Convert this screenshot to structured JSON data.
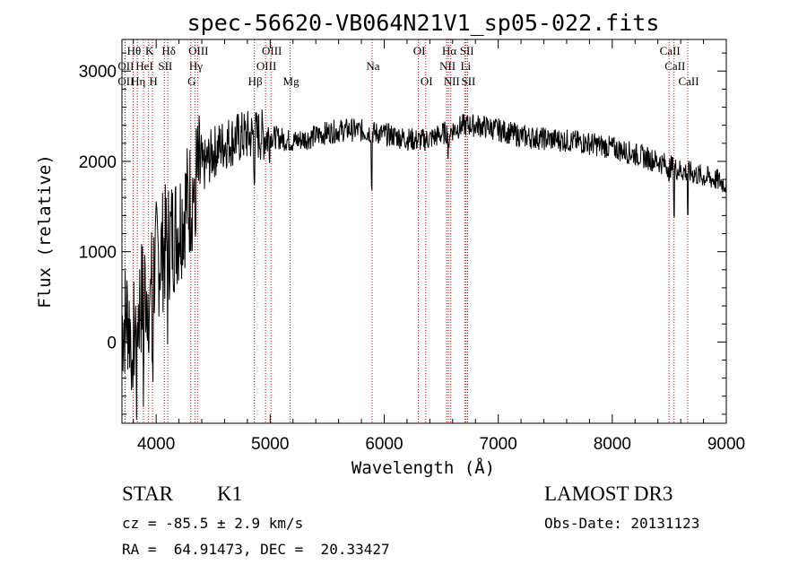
{
  "chart_data": {
    "type": "line",
    "title": "spec-56620-VB064N21V1_sp05-022.fits",
    "xlabel": "Wavelength (Å)",
    "ylabel": "Flux (relative)",
    "xlim": [
      3700,
      9000
    ],
    "ylim": [
      -900,
      3350
    ],
    "xticks": [
      4000,
      5000,
      6000,
      7000,
      8000,
      9000
    ],
    "yticks": [
      0,
      1000,
      2000,
      3000
    ],
    "spectrum_anchors": {
      "x": [
        3700,
        3750,
        3800,
        3850,
        3900,
        3950,
        4000,
        4050,
        4100,
        4150,
        4200,
        4250,
        4300,
        4350,
        4400,
        4450,
        4500,
        4550,
        4600,
        4700,
        4800,
        4900,
        5000,
        5100,
        5200,
        5300,
        5400,
        5500,
        5600,
        5700,
        5800,
        5900,
        6000,
        6100,
        6200,
        6300,
        6400,
        6500,
        6600,
        6700,
        6800,
        6900,
        7000,
        7200,
        7400,
        7600,
        7800,
        8000,
        8200,
        8400,
        8500,
        8600,
        8700,
        8800,
        8900,
        9000
      ],
      "y": [
        200,
        300,
        0,
        400,
        600,
        700,
        900,
        1000,
        1100,
        1200,
        1300,
        1500,
        1600,
        1800,
        1900,
        2000,
        2100,
        2150,
        2200,
        2250,
        2280,
        2290,
        2280,
        2250,
        2220,
        2250,
        2280,
        2320,
        2340,
        2350,
        2340,
        2320,
        2300,
        2280,
        2250,
        2230,
        2250,
        2300,
        2350,
        2400,
        2400,
        2380,
        2350,
        2280,
        2250,
        2230,
        2200,
        2150,
        2080,
        2000,
        1950,
        1900,
        1870,
        1830,
        1800,
        1750
      ]
    },
    "emission_lines": [
      {
        "label": "OII",
        "wavelength": 3727,
        "row": 2
      },
      {
        "label": "Hθ",
        "wavelength": 3798,
        "row": 0
      },
      {
        "label": "OII",
        "wavelength": 3727,
        "row": 1
      },
      {
        "label": "Hη",
        "wavelength": 3835,
        "row": 2
      },
      {
        "label": "HeI",
        "wavelength": 3889,
        "row": 1
      },
      {
        "label": "K",
        "wavelength": 3934,
        "row": 0
      },
      {
        "label": "H",
        "wavelength": 3968,
        "row": 2
      },
      {
        "label": "SII",
        "wavelength": 4072,
        "row": 1
      },
      {
        "label": "Hδ",
        "wavelength": 4102,
        "row": 0
      },
      {
        "label": "G",
        "wavelength": 4304,
        "row": 2
      },
      {
        "label": "Hγ",
        "wavelength": 4340,
        "row": 1
      },
      {
        "label": "OIII",
        "wavelength": 4363,
        "row": 0
      },
      {
        "label": "Hβ",
        "wavelength": 4861,
        "row": 2
      },
      {
        "label": "OIII",
        "wavelength": 4959,
        "row": 1
      },
      {
        "label": "OIII",
        "wavelength": 5007,
        "row": 0
      },
      {
        "label": "Mg",
        "wavelength": 5175,
        "row": 2
      },
      {
        "label": "Na",
        "wavelength": 5894,
        "row": 1
      },
      {
        "label": "OI",
        "wavelength": 6300,
        "row": 0
      },
      {
        "label": "OI",
        "wavelength": 6364,
        "row": 2
      },
      {
        "label": "NII",
        "wavelength": 6548,
        "row": 1
      },
      {
        "label": "Hα",
        "wavelength": 6563,
        "row": 0
      },
      {
        "label": "NII",
        "wavelength": 6584,
        "row": 2
      },
      {
        "label": "SII",
        "wavelength": 6717,
        "row": 0
      },
      {
        "label": "Li",
        "wavelength": 6707,
        "row": 1
      },
      {
        "label": "SII",
        "wavelength": 6731,
        "row": 2
      },
      {
        "label": "CaII",
        "wavelength": 8498,
        "row": 0
      },
      {
        "label": "CaII",
        "wavelength": 8542,
        "row": 1
      },
      {
        "label": "CaII",
        "wavelength": 8662,
        "row": 2
      }
    ],
    "absorption_dips": [
      {
        "x": 3790,
        "depth": 900
      },
      {
        "x": 3830,
        "depth": 800
      },
      {
        "x": 3890,
        "depth": 900
      },
      {
        "x": 3935,
        "depth": 1000
      },
      {
        "x": 3968,
        "depth": 900
      },
      {
        "x": 4102,
        "depth": 600
      },
      {
        "x": 4340,
        "depth": 500
      },
      {
        "x": 4861,
        "depth": 300
      },
      {
        "x": 5890,
        "depth": 600
      },
      {
        "x": 6563,
        "depth": 250
      },
      {
        "x": 8498,
        "depth": 250
      },
      {
        "x": 8542,
        "depth": 500
      },
      {
        "x": 8662,
        "depth": 450
      }
    ],
    "info": {
      "object_class": "STAR",
      "subclass": "K1",
      "survey": "LAMOST DR3",
      "redshift": "cz = -85.5 ± 2.9 km/s",
      "obs_date": "Obs-Date: 20131123",
      "coords": "RA =  64.91473, DEC =  20.33427"
    }
  }
}
